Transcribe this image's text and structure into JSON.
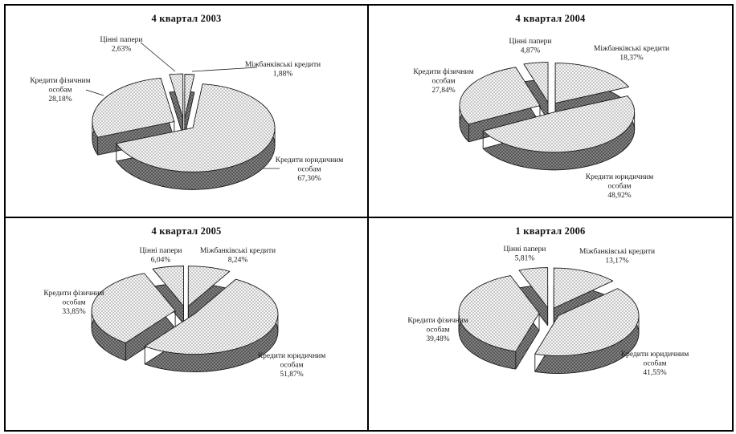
{
  "page": {
    "background": "#ffffff",
    "frame_border_color": "#000000",
    "outline_color": "#1a1a1a",
    "hatch_light_line": "#a0a0a0",
    "hatch_dark_bg": "#8e8e8e",
    "hatch_dark_line": "#4a4a4a"
  },
  "chart_data": [
    {
      "type": "pie",
      "title": "4 квартал 2003",
      "unit": "%",
      "decimal_separator": ",",
      "legend": false,
      "labels_position": "outside-with-leader-lines",
      "style": "3d-exploded-monochrome-crosshatch",
      "slices": [
        {
          "name": "Міжбанківські кредити",
          "value": 1.88,
          "value_label": "1,88%"
        },
        {
          "name": "Кредити юридичним особам",
          "value": 67.3,
          "value_label": "67,30%"
        },
        {
          "name": "Кредити фізичним особам",
          "value": 28.18,
          "value_label": "28,18%"
        },
        {
          "name": "Цінні папери",
          "value": 2.63,
          "value_label": "2,63%"
        }
      ]
    },
    {
      "type": "pie",
      "title": "4 квартал 2004",
      "unit": "%",
      "decimal_separator": ",",
      "legend": false,
      "labels_position": "outside",
      "style": "3d-exploded-monochrome-crosshatch",
      "slices": [
        {
          "name": "Міжбанківські кредити",
          "value": 18.37,
          "value_label": "18,37%"
        },
        {
          "name": "Кредити юридичним особам",
          "value": 48.92,
          "value_label": "48,92%"
        },
        {
          "name": "Кредити фізичним особам",
          "value": 27.84,
          "value_label": "27,84%"
        },
        {
          "name": "Цінні папери",
          "value": 4.87,
          "value_label": "4,87%"
        }
      ]
    },
    {
      "type": "pie",
      "title": "4 квартал 2005",
      "unit": "%",
      "decimal_separator": ",",
      "legend": false,
      "labels_position": "outside",
      "style": "3d-exploded-monochrome-crosshatch",
      "slices": [
        {
          "name": "Міжбанківські кредити",
          "value": 8.24,
          "value_label": "8,24%"
        },
        {
          "name": "Кредити юридичним особам",
          "value": 51.87,
          "value_label": "51,87%"
        },
        {
          "name": "Кредити фізичним особам",
          "value": 33.85,
          "value_label": "33,85%"
        },
        {
          "name": "Цінні папери",
          "value": 6.04,
          "value_label": "6,04%"
        }
      ]
    },
    {
      "type": "pie",
      "title": "1 квартал 2006",
      "unit": "%",
      "decimal_separator": ",",
      "legend": false,
      "labels_position": "outside",
      "style": "3d-exploded-monochrome-crosshatch",
      "slices": [
        {
          "name": "Міжбанківські кредити",
          "value": 13.17,
          "value_label": "13,17%"
        },
        {
          "name": "Кредити юридичним особам",
          "value": 41.55,
          "value_label": "41,55%"
        },
        {
          "name": "Кредити фізичним особам",
          "value": 39.48,
          "value_label": "39,48%"
        },
        {
          "name": "Цінні папери",
          "value": 5.81,
          "value_label": "5,81%"
        }
      ]
    }
  ]
}
